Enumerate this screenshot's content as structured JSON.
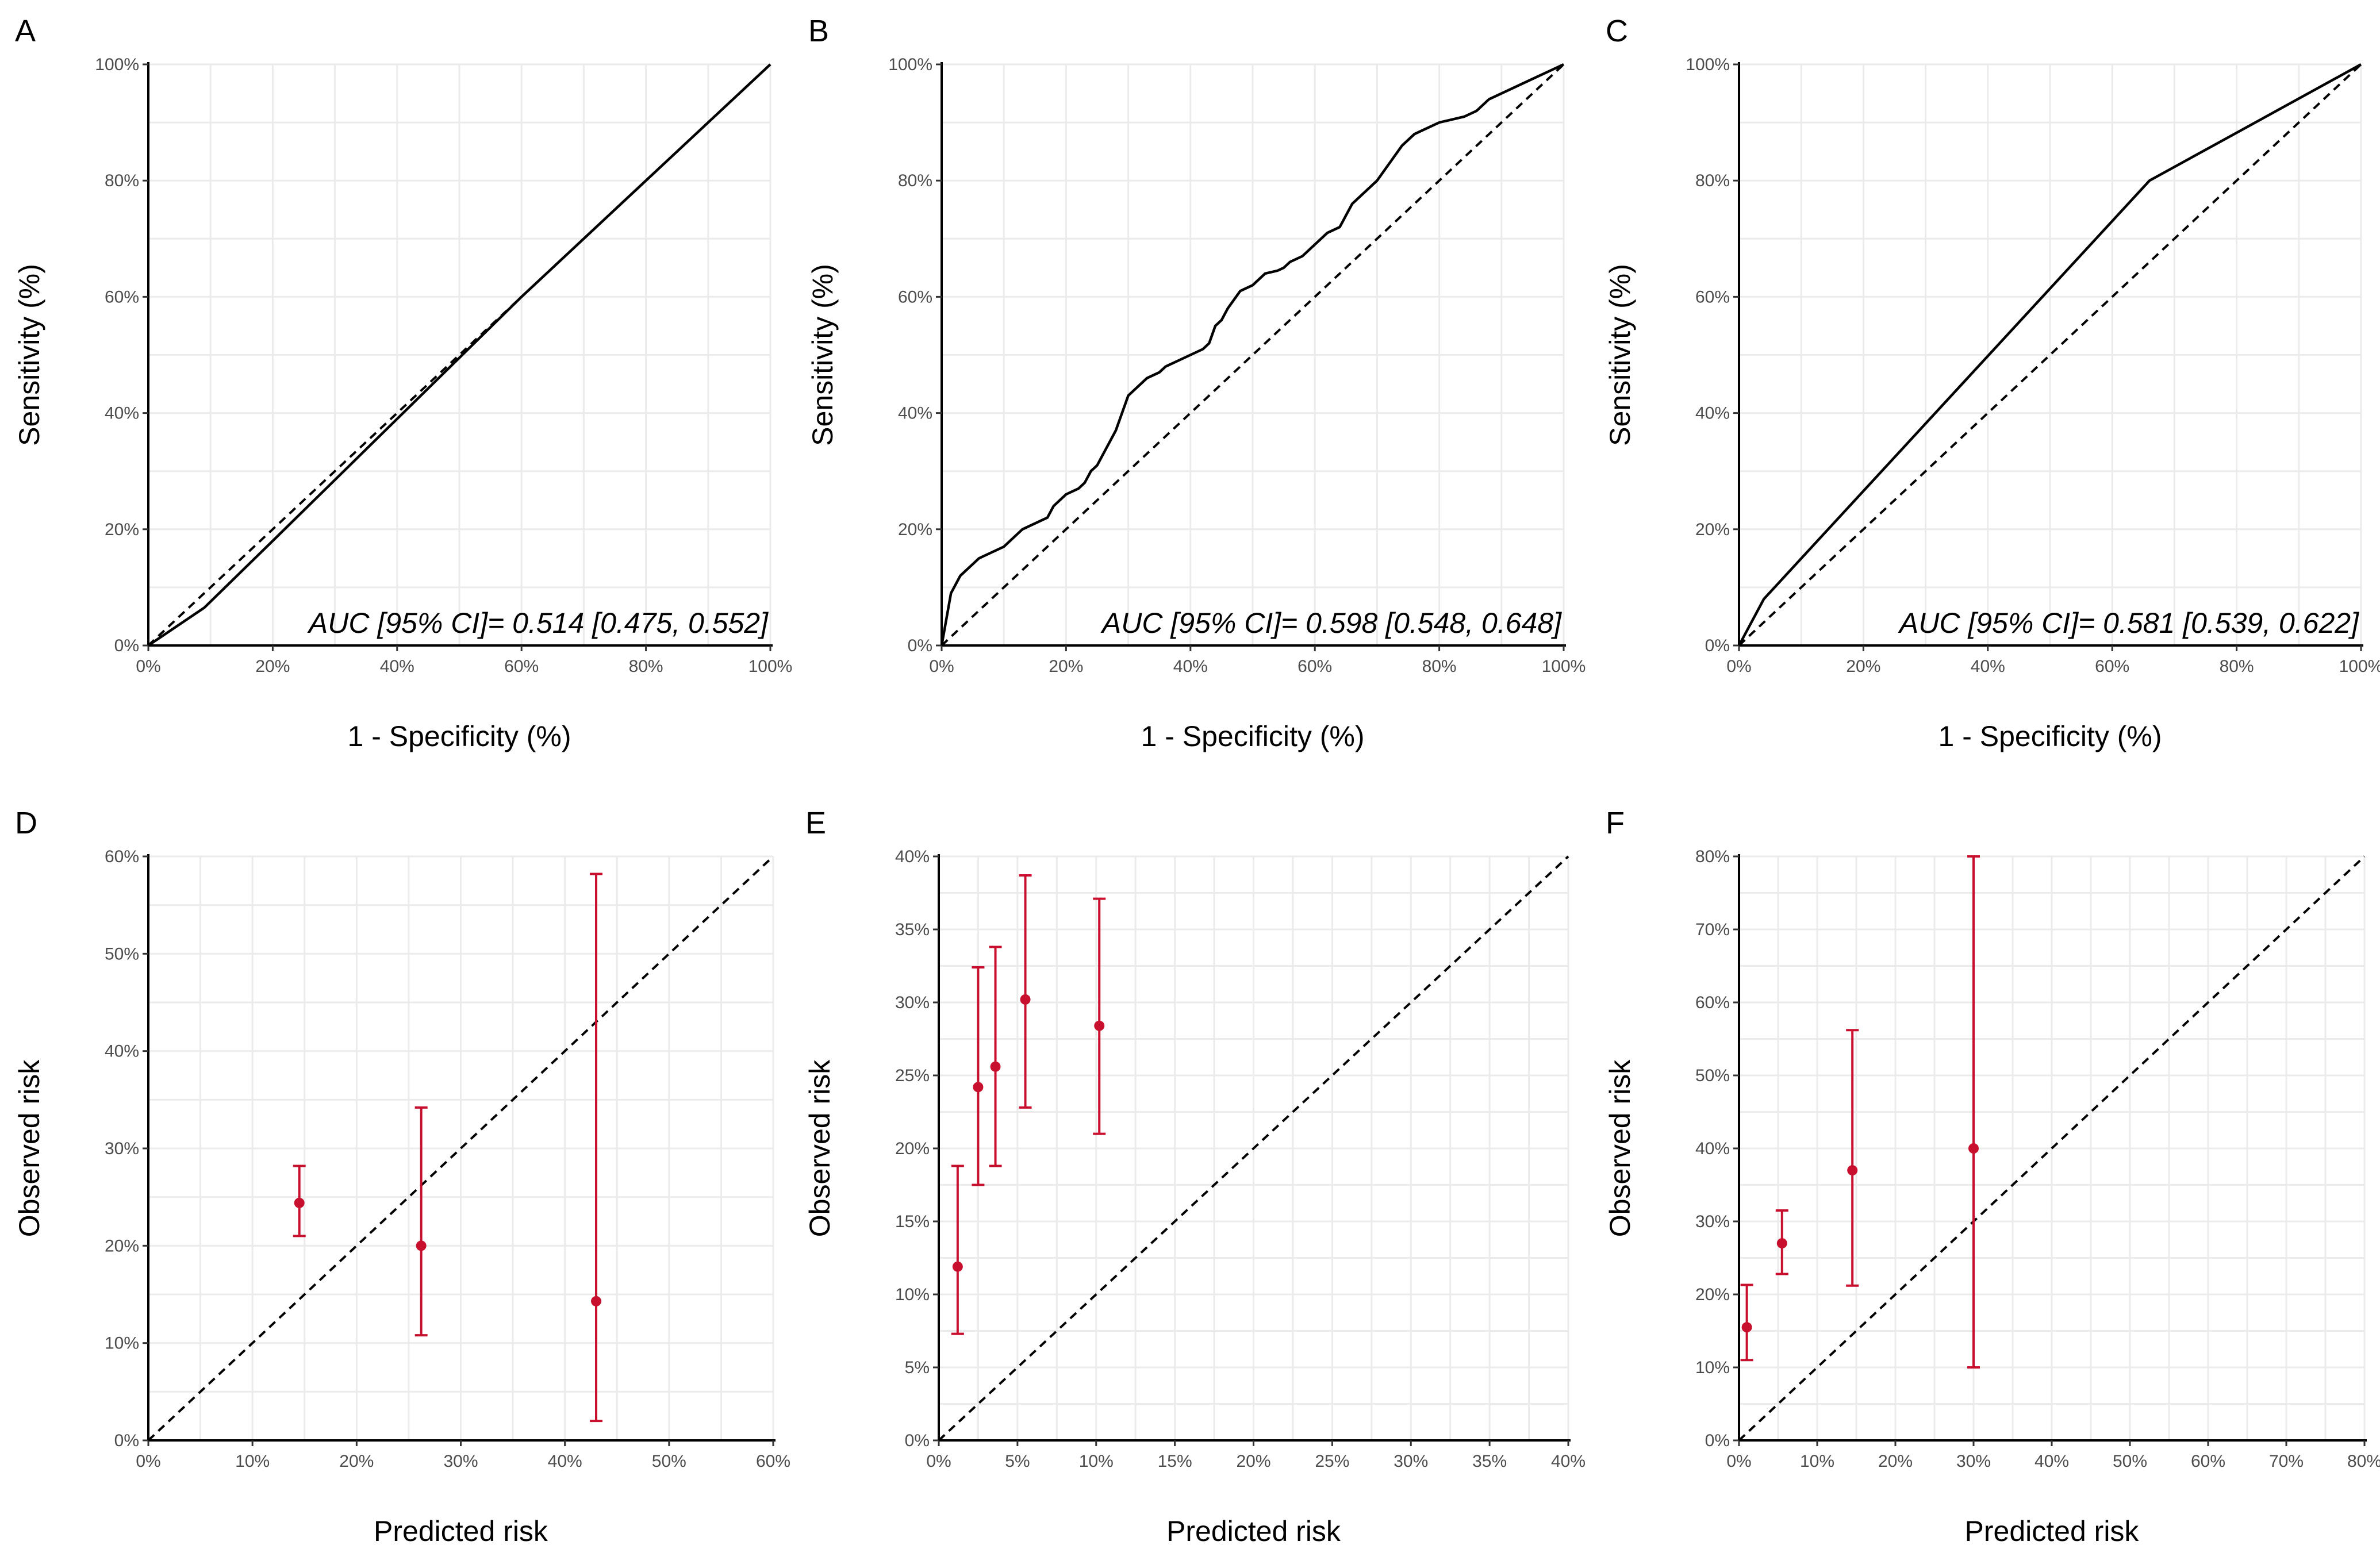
{
  "chart_data": [
    {
      "panel": "A",
      "type": "line",
      "title": "",
      "xlabel": "1 - Specificity (%)",
      "ylabel": "Sensitivity (%)",
      "xlim": [
        0,
        100
      ],
      "ylim": [
        0,
        100
      ],
      "x_ticks": [
        "0%",
        "20%",
        "40%",
        "60%",
        "80%",
        "100%"
      ],
      "y_ticks": [
        "0%",
        "20%",
        "40%",
        "60%",
        "80%",
        "100%"
      ],
      "reference_line": "diagonal (dashed)",
      "roc": {
        "x": [
          0,
          9,
          20,
          40,
          60,
          80,
          100
        ],
        "y": [
          0,
          6.5,
          18,
          39,
          60,
          80,
          100
        ]
      },
      "annotation": "AUC [95% CI]= 0.514 [0.475, 0.552]"
    },
    {
      "panel": "B",
      "type": "line",
      "title": "",
      "xlabel": "1 - Specificity (%)",
      "ylabel": "Sensitivity (%)",
      "xlim": [
        0,
        100
      ],
      "ylim": [
        0,
        100
      ],
      "x_ticks": [
        "0%",
        "20%",
        "40%",
        "60%",
        "80%",
        "100%"
      ],
      "y_ticks": [
        "0%",
        "20%",
        "40%",
        "60%",
        "80%",
        "100%"
      ],
      "reference_line": "diagonal (dashed)",
      "roc": {
        "x": [
          0,
          0.5,
          1,
          1.5,
          2,
          3,
          4,
          5,
          6,
          8,
          10,
          12,
          13,
          15,
          17,
          18,
          20,
          22,
          23,
          24,
          25,
          26,
          27,
          28,
          29,
          30,
          32,
          33,
          35,
          36,
          38,
          40,
          42,
          43,
          44,
          45,
          46,
          48,
          50,
          52,
          54,
          55,
          56,
          58,
          60,
          61,
          62,
          64,
          65,
          66,
          68,
          70,
          72,
          74,
          76,
          78,
          80,
          82,
          84,
          86,
          88,
          90,
          92,
          94,
          96,
          98,
          100
        ],
        "y": [
          0,
          3,
          6,
          9,
          10,
          12,
          13,
          14,
          15,
          16,
          17,
          19,
          20,
          21,
          22,
          24,
          26,
          27,
          28,
          30,
          31,
          33,
          35,
          37,
          40,
          43,
          45,
          46,
          47,
          48,
          49,
          50,
          51,
          52,
          55,
          56,
          58,
          61,
          62,
          64,
          64.5,
          65,
          66,
          67,
          69,
          70,
          71,
          72,
          74,
          76,
          78,
          80,
          83,
          86,
          88,
          89,
          90,
          90.5,
          91,
          92,
          94,
          95,
          96,
          97,
          98,
          99,
          100
        ]
      },
      "annotation": "AUC [95% CI]= 0.598 [0.548, 0.648]"
    },
    {
      "panel": "C",
      "type": "line",
      "title": "",
      "xlabel": "1 - Specificity (%)",
      "ylabel": "Sensitivity (%)",
      "xlim": [
        0,
        100
      ],
      "ylim": [
        0,
        100
      ],
      "x_ticks": [
        "0%",
        "20%",
        "40%",
        "60%",
        "80%",
        "100%"
      ],
      "y_ticks": [
        "0%",
        "20%",
        "40%",
        "60%",
        "80%",
        "100%"
      ],
      "reference_line": "diagonal (dashed)",
      "roc": {
        "x": [
          0,
          4,
          66,
          100
        ],
        "y": [
          0,
          8,
          80,
          100
        ]
      },
      "annotation": "AUC [95% CI]= 0.581 [0.539, 0.622]"
    },
    {
      "panel": "D",
      "type": "scatter",
      "title": "",
      "xlabel": "Predicted risk",
      "ylabel": "Observed risk",
      "xlim": [
        0,
        60
      ],
      "ylim": [
        0,
        60
      ],
      "x_ticks": [
        "0%",
        "10%",
        "20%",
        "30%",
        "40%",
        "50%",
        "60%"
      ],
      "y_ticks": [
        "0%",
        "10%",
        "20%",
        "30%",
        "40%",
        "50%",
        "60%"
      ],
      "reference_line": "diagonal (dashed)",
      "points": [
        {
          "x": 14.5,
          "y": 24.4,
          "lo": 21.0,
          "hi": 28.2
        },
        {
          "x": 26.2,
          "y": 20.0,
          "lo": 10.8,
          "hi": 34.2
        },
        {
          "x": 43.0,
          "y": 14.3,
          "lo": 2.0,
          "hi": 58.2
        }
      ]
    },
    {
      "panel": "E",
      "type": "scatter",
      "title": "",
      "xlabel": "Predicted risk",
      "ylabel": "Observed risk",
      "xlim": [
        0,
        40
      ],
      "ylim": [
        0,
        40
      ],
      "x_ticks": [
        "0%",
        "5%",
        "10%",
        "15%",
        "20%",
        "25%",
        "30%",
        "35%",
        "40%"
      ],
      "y_ticks": [
        "0%",
        "5%",
        "10%",
        "15%",
        "20%",
        "25%",
        "30%",
        "35%",
        "40%"
      ],
      "reference_line": "diagonal (dashed)",
      "points": [
        {
          "x": 1.2,
          "y": 11.9,
          "lo": 7.3,
          "hi": 18.8
        },
        {
          "x": 2.5,
          "y": 24.2,
          "lo": 17.5,
          "hi": 32.4
        },
        {
          "x": 3.6,
          "y": 25.6,
          "lo": 18.8,
          "hi": 33.8
        },
        {
          "x": 5.5,
          "y": 30.2,
          "lo": 22.8,
          "hi": 38.7
        },
        {
          "x": 10.2,
          "y": 28.4,
          "lo": 21.0,
          "hi": 37.1
        }
      ]
    },
    {
      "panel": "F",
      "type": "scatter",
      "title": "",
      "xlabel": "Predicted risk",
      "ylabel": "Observed risk",
      "xlim": [
        0,
        80
      ],
      "ylim": [
        0,
        80
      ],
      "x_ticks": [
        "0%",
        "10%",
        "20%",
        "30%",
        "40%",
        "50%",
        "60%",
        "70%",
        "80%"
      ],
      "y_ticks": [
        "0%",
        "10%",
        "20%",
        "30%",
        "40%",
        "50%",
        "60%",
        "70%",
        "80%"
      ],
      "reference_line": "diagonal (dashed)",
      "points": [
        {
          "x": 1.0,
          "y": 15.5,
          "lo": 11.0,
          "hi": 21.3
        },
        {
          "x": 5.5,
          "y": 27.0,
          "lo": 22.8,
          "hi": 31.5
        },
        {
          "x": 14.5,
          "y": 37.0,
          "lo": 21.2,
          "hi": 56.2
        },
        {
          "x": 30.0,
          "y": 40.0,
          "lo": 10.0,
          "hi": 80.0
        }
      ]
    }
  ]
}
